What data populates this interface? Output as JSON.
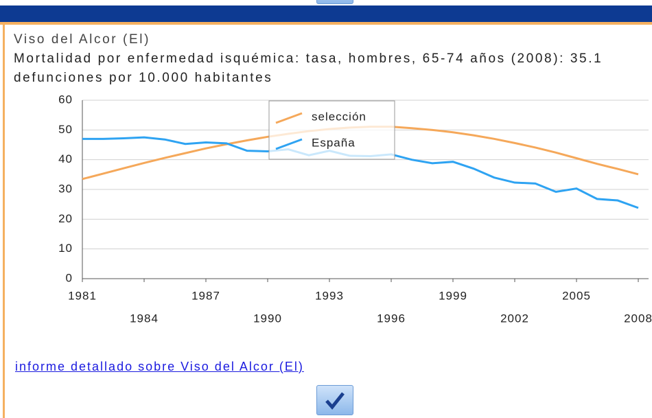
{
  "chart_data": {
    "type": "line",
    "title": "Viso del Alcor (El)",
    "subtitle": "Mortalidad por enfermedad isquémica: tasa, hombres, 65-74 años (2008): 35.1 defunciones por 10.000 habitantes",
    "x": [
      1981,
      1982,
      1983,
      1984,
      1985,
      1986,
      1987,
      1988,
      1989,
      1990,
      1991,
      1992,
      1993,
      1994,
      1995,
      1996,
      1997,
      1998,
      1999,
      2000,
      2001,
      2002,
      2003,
      2004,
      2005,
      2006,
      2007,
      2008
    ],
    "series": [
      {
        "name": "selección",
        "color": "#f5a85a",
        "values": [
          33.5,
          35.3,
          37.1,
          38.9,
          40.6,
          42.2,
          43.8,
          45.2,
          46.5,
          47.7,
          48.7,
          49.6,
          50.3,
          50.8,
          51.1,
          51.1,
          50.6,
          50.0,
          49.2,
          48.2,
          47.0,
          45.6,
          44.1,
          42.4,
          40.5,
          38.6,
          36.9,
          35.1
        ]
      },
      {
        "name": "España",
        "color": "#2ea3f2",
        "values": [
          47,
          47,
          47.2,
          47.5,
          46.8,
          45.3,
          45.8,
          45.5,
          43,
          42.8,
          43.5,
          41.5,
          43,
          41.3,
          41.2,
          41.8,
          40,
          38.8,
          39.3,
          37,
          34,
          32.3,
          32,
          29.2,
          30.3,
          26.8,
          26.3,
          23.8
        ]
      }
    ],
    "xlim": [
      1981,
      2008
    ],
    "xticks": [
      1981,
      1984,
      1987,
      1990,
      1993,
      1996,
      1999,
      2002,
      2005,
      2008
    ],
    "ylim": [
      0,
      60
    ],
    "yticks": [
      0,
      10,
      20,
      30,
      40,
      50,
      60
    ],
    "grid": true,
    "legend_position": "top"
  },
  "link": "informe detallado sobre Viso del Alcor (El)"
}
